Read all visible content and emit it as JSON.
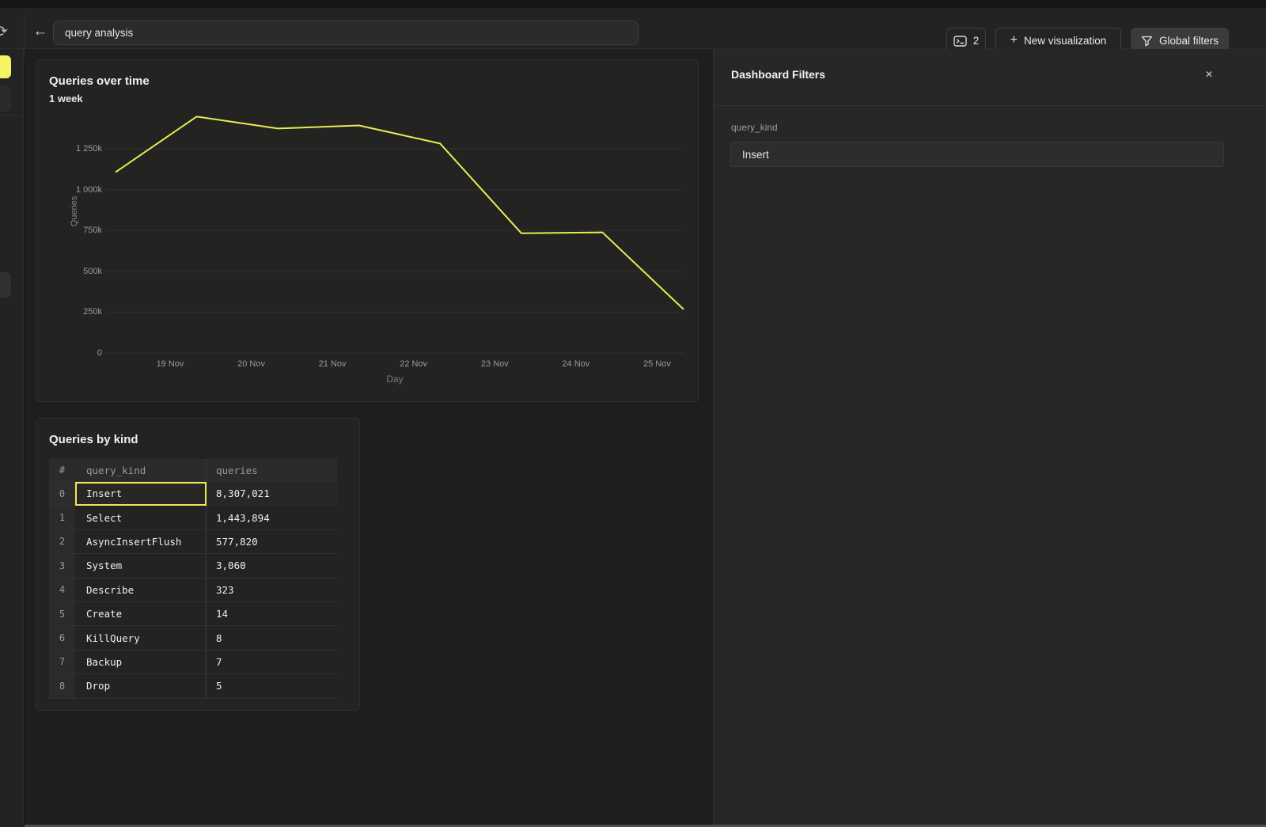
{
  "topbar": {
    "history_icon": "⟳",
    "back_icon": "←",
    "title_input": "query analysis",
    "tabs_button": {
      "count": "2"
    },
    "new_viz_button": {
      "plus": "+",
      "label": "New visualization"
    },
    "global_filters_button": {
      "label": "Global filters"
    }
  },
  "chart_card": {
    "title": "Queries over time",
    "subtitle": "1 week"
  },
  "chart_data": {
    "type": "line",
    "title": "Queries over time",
    "subtitle": "1 week",
    "xlabel": "Day",
    "ylabel": "Queries",
    "line_color": "#e9eb55",
    "grid": true,
    "ylim": [
      0,
      1600000
    ],
    "y_tick_labels": [
      "0",
      "250k",
      "500k",
      "750k",
      "1 000k",
      "1 250k"
    ],
    "x_tick_labels": [
      "19 Nov",
      "20 Nov",
      "21 Nov",
      "22 Nov",
      "23 Nov",
      "24 Nov",
      "25 Nov"
    ],
    "points": [
      {
        "day": "18 Nov",
        "queries": 1107000
      },
      {
        "day": "19 Nov",
        "queries": 1447000
      },
      {
        "day": "20 Nov",
        "queries": 1374000
      },
      {
        "day": "21 Nov",
        "queries": 1393000
      },
      {
        "day": "22 Nov",
        "queries": 1282000
      },
      {
        "day": "23 Nov",
        "queries": 733000
      },
      {
        "day": "24 Nov",
        "queries": 738000
      },
      {
        "day": "25 Nov",
        "queries": 267000
      }
    ]
  },
  "table_card": {
    "title": "Queries by kind",
    "columns": [
      "#",
      "query_kind",
      "queries"
    ],
    "rows": [
      {
        "index": "0",
        "query_kind": "Insert",
        "queries": "8,307,021",
        "selected": true
      },
      {
        "index": "1",
        "query_kind": "Select",
        "queries": "1,443,894",
        "selected": false
      },
      {
        "index": "2",
        "query_kind": "AsyncInsertFlush",
        "queries": "577,820",
        "selected": false
      },
      {
        "index": "3",
        "query_kind": "System",
        "queries": "3,060",
        "selected": false
      },
      {
        "index": "4",
        "query_kind": "Describe",
        "queries": "323",
        "selected": false
      },
      {
        "index": "5",
        "query_kind": "Create",
        "queries": "14",
        "selected": false
      },
      {
        "index": "6",
        "query_kind": "KillQuery",
        "queries": "8",
        "selected": false
      },
      {
        "index": "7",
        "query_kind": "Backup",
        "queries": "7",
        "selected": false
      },
      {
        "index": "8",
        "query_kind": "Drop",
        "queries": "5",
        "selected": false
      }
    ]
  },
  "filters_panel": {
    "title": "Dashboard Filters",
    "close_icon": "✕",
    "field_label": "query_kind",
    "field_value": "Insert"
  },
  "colors": {
    "accent_yellow": "#e9eb55",
    "panel_bg": "#27272a",
    "card_bg": "#232322",
    "page_bg": "#1e1e1d"
  }
}
